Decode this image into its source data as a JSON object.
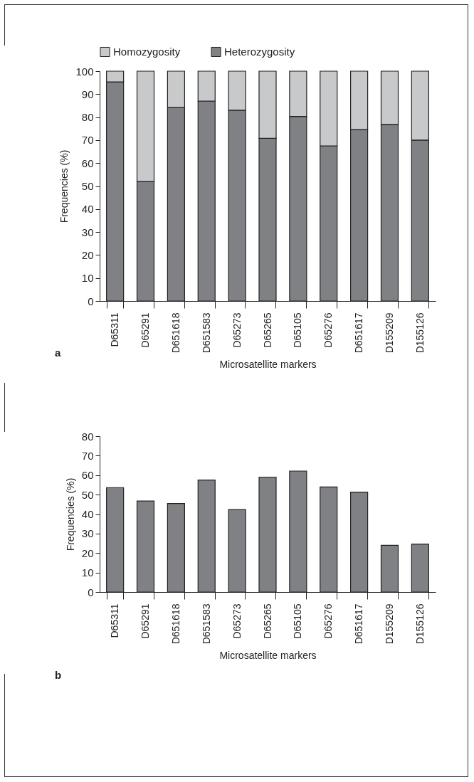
{
  "chart_data": [
    {
      "type": "bar",
      "stacked": true,
      "xlabel": "Microsatellite markers",
      "ylabel": "Frequencies (%)",
      "legend": "top",
      "annotations": [
        "a"
      ],
      "categories": [
        "D65311",
        "D65291",
        "D651618",
        "D651583",
        "D65273",
        "D65265",
        "D65105",
        "D65276",
        "D651617",
        "D155209",
        "D155126"
      ],
      "ylim": [
        0,
        100
      ],
      "yticks": [
        0,
        10,
        20,
        30,
        40,
        50,
        60,
        70,
        80,
        90,
        100
      ],
      "series": [
        {
          "name": "Heterozygosity",
          "color": "#808185",
          "values": [
            95.3,
            52,
            84.2,
            87,
            83,
            70.8,
            80.3,
            67.5,
            74.6,
            76.8,
            70
          ]
        },
        {
          "name": "Homozygosity",
          "color": "#c8c9cb",
          "values": [
            4.7,
            48,
            15.8,
            13,
            17,
            29.2,
            19.7,
            32.5,
            25.4,
            23.2,
            30
          ]
        }
      ]
    },
    {
      "type": "bar",
      "xlabel": "Microsatellite markers",
      "ylabel": "Frequencies (%)",
      "annotations": [
        "b"
      ],
      "categories": [
        "D65311",
        "D65291",
        "D651618",
        "D651583",
        "D65273",
        "D65265",
        "D65105",
        "D65276",
        "D651617",
        "D155209",
        "D155126"
      ],
      "ylim": [
        0,
        80
      ],
      "yticks": [
        0,
        10,
        20,
        30,
        40,
        50,
        60,
        70,
        80
      ],
      "color": "#808185",
      "values": [
        53.6,
        46.7,
        45.4,
        57.5,
        42.3,
        59,
        62.1,
        53.9,
        51.3,
        24,
        24.6
      ]
    }
  ]
}
